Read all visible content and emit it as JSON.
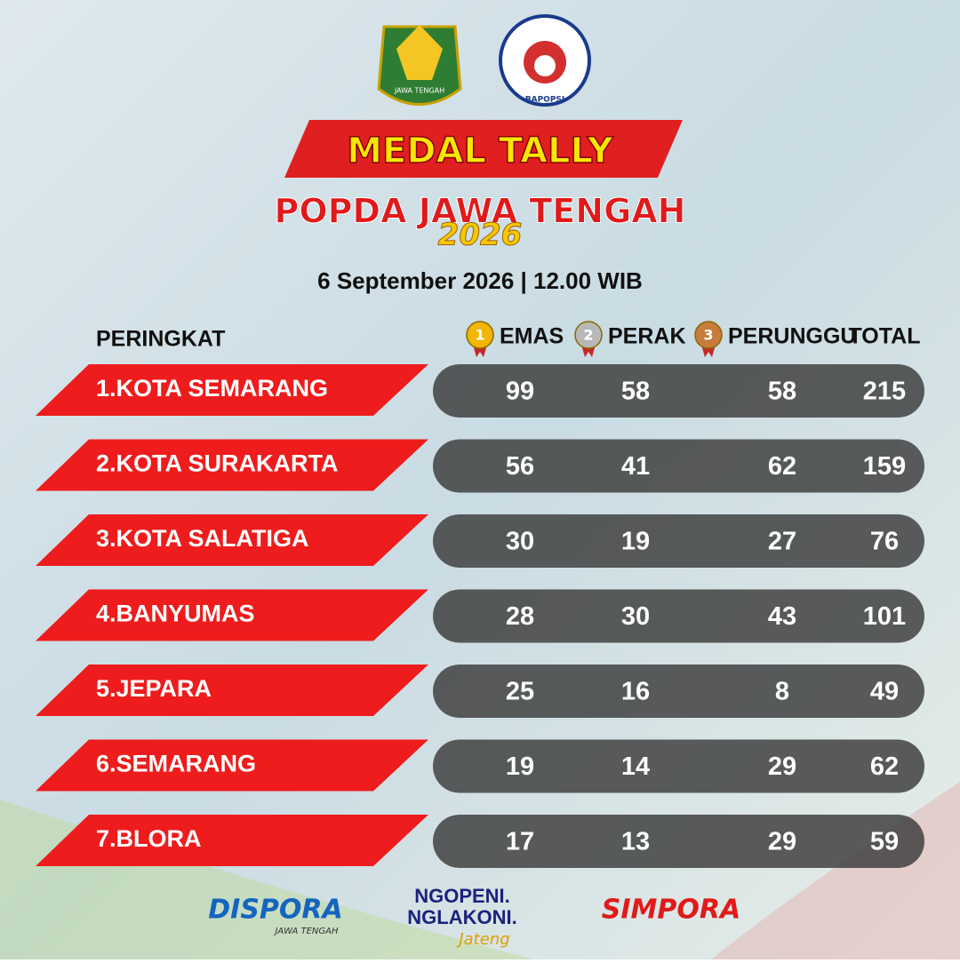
{
  "header": {
    "logos": {
      "left": "JAWA TENGAH",
      "right": "BAPOPSI"
    },
    "title": "MEDAL TALLY",
    "subtitle": "POPDA JAWA TENGAH",
    "year": "2026",
    "date": "6 September 2026 | 12.00 WIB"
  },
  "table": {
    "rank_label": "PERINGKAT",
    "medal_columns": [
      {
        "medal": "1",
        "label": "EMAS"
      },
      {
        "medal": "2",
        "label": "PERAK"
      },
      {
        "medal": "3",
        "label": "PERUNGGU"
      }
    ],
    "total_label": "TOTAL",
    "rows": [
      {
        "name": "1.KOTA SEMARANG",
        "values": [
          99,
          58,
          58,
          215
        ]
      },
      {
        "name": "2.KOTA SURAKARTA",
        "values": [
          56,
          41,
          62,
          159
        ]
      },
      {
        "name": "3.KOTA SALATIGA",
        "values": [
          30,
          19,
          27,
          76
        ]
      },
      {
        "name": "4.BANYUMAS",
        "values": [
          28,
          30,
          43,
          101
        ]
      },
      {
        "name": "5.JEPARA",
        "values": [
          25,
          16,
          8,
          49
        ]
      },
      {
        "name": "6.SEMARANG",
        "values": [
          19,
          14,
          29,
          62
        ]
      },
      {
        "name": "7.BLORA",
        "values": [
          17,
          13,
          29,
          59
        ]
      }
    ]
  },
  "footer": {
    "dispora": "DISPORA",
    "dispora_sub": "JAWA TENGAH",
    "slogan1": "NGOPENI.",
    "slogan2": "NGLAKONI.",
    "slogan3": "Jateng",
    "simpora": "SIMPORA"
  }
}
